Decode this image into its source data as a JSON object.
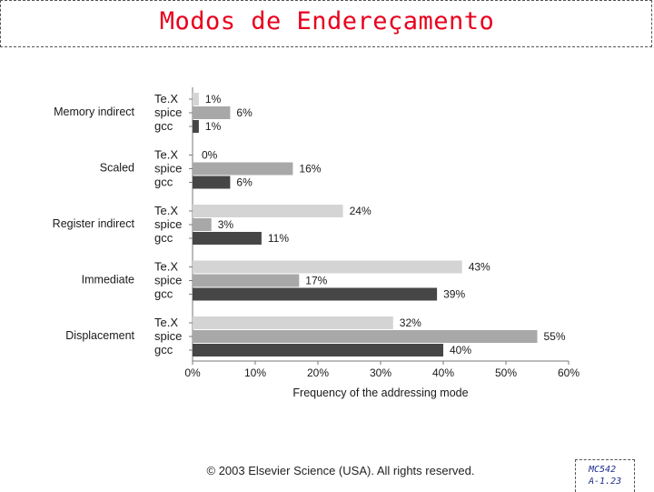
{
  "title": "Modos de Endereçamento",
  "copyright": "© 2003 Elsevier Science (USA). All rights reserved.",
  "footer": {
    "line1": "MC542",
    "line2": "A-1.23"
  },
  "colors": {
    "title": "#e8001c",
    "TeX": "#d4d4d4",
    "spice": "#a8a8a8",
    "gcc": "#464646"
  },
  "chart_data": {
    "type": "bar",
    "orientation": "horizontal",
    "xlabel": "Frequency of the addressing mode",
    "xlim": [
      0,
      60
    ],
    "xticks": [
      "0%",
      "10%",
      "20%",
      "30%",
      "40%",
      "50%",
      "60%"
    ],
    "grid": false,
    "categories": [
      "Memory indirect",
      "Scaled",
      "Register indirect",
      "Immediate",
      "Displacement"
    ],
    "series": [
      {
        "name": "TeX",
        "label": "Te.X",
        "values": [
          1,
          0,
          24,
          43,
          32
        ]
      },
      {
        "name": "spice",
        "label": "spice",
        "values": [
          6,
          16,
          3,
          17,
          55
        ]
      },
      {
        "name": "gcc",
        "label": "gcc",
        "values": [
          1,
          6,
          11,
          39,
          40
        ]
      }
    ]
  }
}
